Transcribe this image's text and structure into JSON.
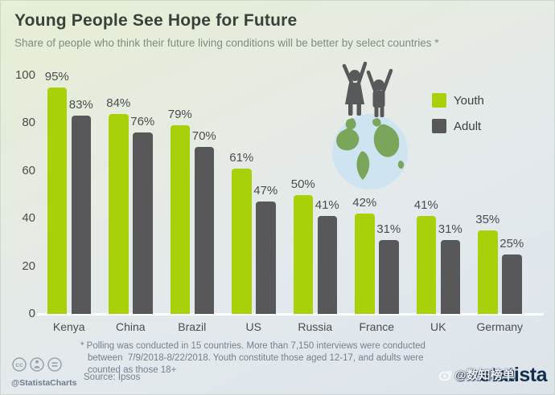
{
  "header": {
    "title": "Young People See Hope for Future",
    "subtitle": "Share of people who think their future living conditions will be better by select countries *"
  },
  "colors": {
    "youth": "#a8d10a",
    "adult": "#58585a",
    "logo_navy": "#142e4d",
    "globe_ocean": "#cfe4f1",
    "globe_land": "#7aa65b"
  },
  "legend": [
    {
      "label": "Youth",
      "color": "#a8d10a"
    },
    {
      "label": "Adult",
      "color": "#58585a"
    }
  ],
  "chart_data": {
    "type": "bar",
    "categories": [
      "Kenya",
      "China",
      "Brazil",
      "US",
      "Russia",
      "France",
      "UK",
      "Germany"
    ],
    "series": [
      {
        "name": "Youth",
        "color": "#a8d10a",
        "values": [
          95,
          84,
          79,
          61,
          50,
          42,
          41,
          35
        ]
      },
      {
        "name": "Adult",
        "color": "#58585a",
        "values": [
          83,
          76,
          70,
          47,
          41,
          31,
          31,
          25
        ]
      }
    ],
    "value_suffix": "%",
    "title": "Young People See Hope for Future",
    "xlabel": "",
    "ylabel": "",
    "ylim": [
      0,
      100
    ],
    "yticks": [
      0,
      20,
      40,
      60,
      80,
      100
    ],
    "grid": false,
    "legend_position": "right"
  },
  "footer": {
    "note_line1": "* Polling was conducted in 15 countries. More than 7,150 interviews were conducted",
    "note_line2": "between  7/9/2018-8/22/2018. Youth constitute those aged 12-17, and adults were",
    "note_line3": "counted as those 18+",
    "source": "Source: Ipsos",
    "credit": "@StatistaCharts",
    "logo_text": "statista",
    "watermark_text": "@数知榜单"
  }
}
